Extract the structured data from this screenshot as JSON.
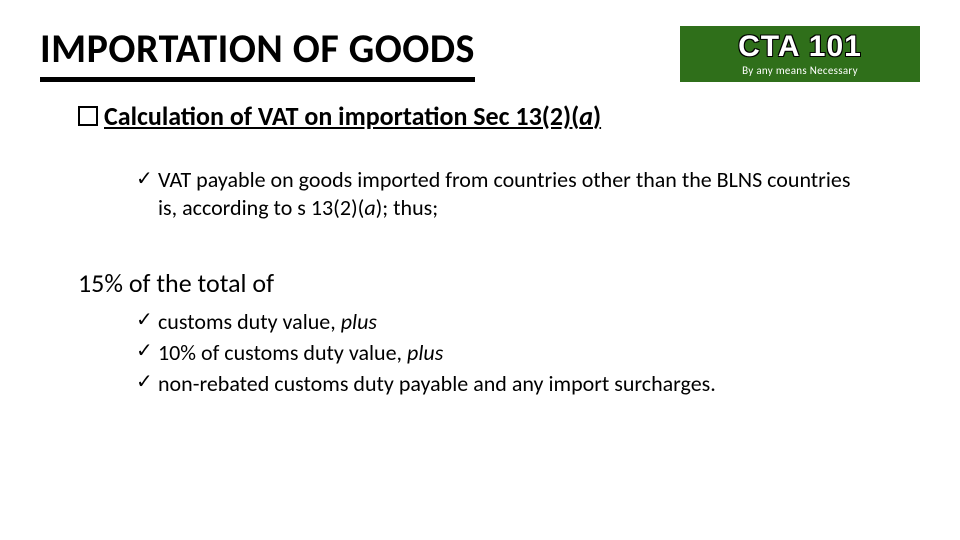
{
  "title": "IMPORTATION OF GOODS",
  "logo": {
    "main": "CTA 101",
    "sub": "By any means Necessary",
    "bg_color": "#2f6f1a",
    "text_color": "#ffffff"
  },
  "section": {
    "prefix": "Calculation of VAT on importation Sec 13(2)(",
    "italic": "a",
    "suffix": ")"
  },
  "bullet1": {
    "part1": "VAT payable on goods imported from countries other than the BLNS countries is, according to s 13(2)(",
    "italic": "a",
    "part2": "); thus;"
  },
  "plain": "15% of the total of",
  "list2": {
    "item1_text": "customs duty value, ",
    "item1_italic": "plus",
    "item2_text": "10% of customs duty value, ",
    "item2_italic": "plus",
    "item3_text": "non-rebated customs duty payable and any import surcharges."
  },
  "colors": {
    "background": "#ffffff",
    "text": "#000000"
  }
}
